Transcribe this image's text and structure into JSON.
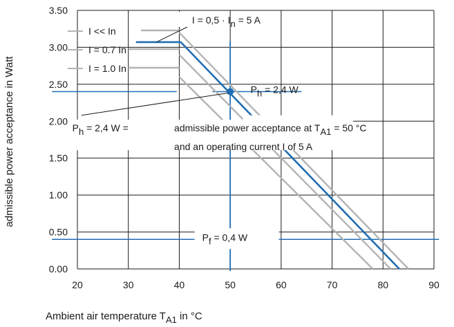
{
  "chart_data": {
    "type": "line",
    "title": "",
    "xlabel": "Ambient air temperature T",
    "xlabel_sub": "A1",
    "xlabel_unit": " in °C",
    "ylabel": "admissible power acceptance in Watt",
    "xlim": [
      20,
      90
    ],
    "ylim": [
      0,
      3.5
    ],
    "xticks": [
      "20",
      "30",
      "40",
      "50",
      "60",
      "70",
      "80",
      "90"
    ],
    "yticks": [
      "0.00",
      "0.50",
      "1.00",
      "1.50",
      "2.00",
      "2.50",
      "3.00",
      "3.50"
    ],
    "highlight_xtick": "50",
    "grid": true,
    "colors": {
      "accent": "#1f6db3",
      "gray": "#b3b3b3",
      "grid": "#1a1a1a"
    },
    "series": [
      {
        "name": "I << In",
        "color": "#b3b3b3",
        "points": [
          [
            40,
            3.2
          ],
          [
            85,
            0
          ]
        ]
      },
      {
        "name": "I = 0.7 In",
        "color": "#b3b3b3",
        "points": [
          [
            40,
            2.9
          ],
          [
            81.5,
            0
          ]
        ]
      },
      {
        "name": "I = 1.0 In",
        "color": "#b3b3b3",
        "points": [
          [
            40,
            2.6
          ],
          [
            78,
            0
          ]
        ]
      },
      {
        "name": "I = 0,5 · In = 5 A",
        "color": "#1f6db3",
        "points": [
          [
            31.5,
            3.07
          ],
          [
            40.3,
            3.07
          ],
          [
            83.2,
            0
          ]
        ]
      }
    ],
    "legend": [
      {
        "text": "I << In"
      },
      {
        "text": "I = 0.7 In"
      },
      {
        "text": "I = 1.0 In"
      }
    ],
    "annotations": {
      "current_main": "I = 0,5 · I",
      "current_sub": "n",
      "current_tail": " = 5 A",
      "ph_main": "P",
      "ph_sub": "h",
      "ph_tail": " = 2,4 W",
      "ph_note_a": "P",
      "ph_note_sub": "h",
      "ph_note_b": " = 2,4 W =",
      "ph_desc1": "admissible power acceptance at T",
      "ph_desc1_sub": "A1",
      "ph_desc1_tail": " = 50 °C",
      "ph_desc2": "and an operating current I of 5 A",
      "pf_main": "P",
      "pf_sub": "f",
      "pf_tail": " = 0,4 W"
    },
    "marker": {
      "x": 50,
      "y": 2.4
    },
    "pf_level": 0.4
  }
}
